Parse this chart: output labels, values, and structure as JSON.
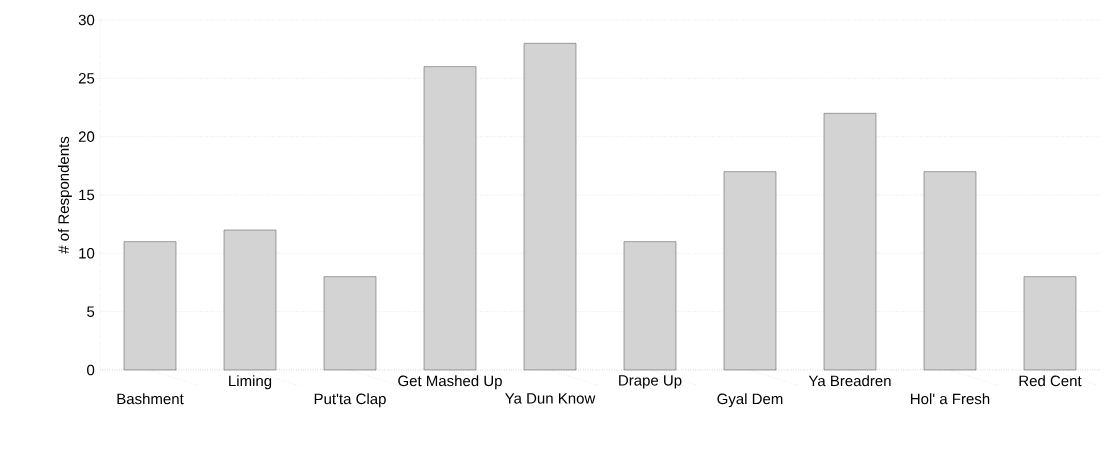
{
  "chart_data": {
    "type": "bar",
    "ylabel": "# of Respondents",
    "categories": [
      "Bashment",
      "Liming",
      "Put'ta Clap",
      "Get Mashed Up",
      "Ya Dun Know",
      "Drape Up",
      "Gyal Dem",
      "Ya Breadren",
      "Hol' a Fresh",
      "Red Cent"
    ],
    "values": [
      11,
      12,
      8,
      26,
      28,
      11,
      17,
      22,
      17,
      8
    ],
    "color": "#d3d3d3",
    "ylim": [
      0,
      30
    ],
    "yticks": [
      0,
      5,
      10,
      15,
      20,
      25,
      30
    ],
    "grid": "y"
  }
}
